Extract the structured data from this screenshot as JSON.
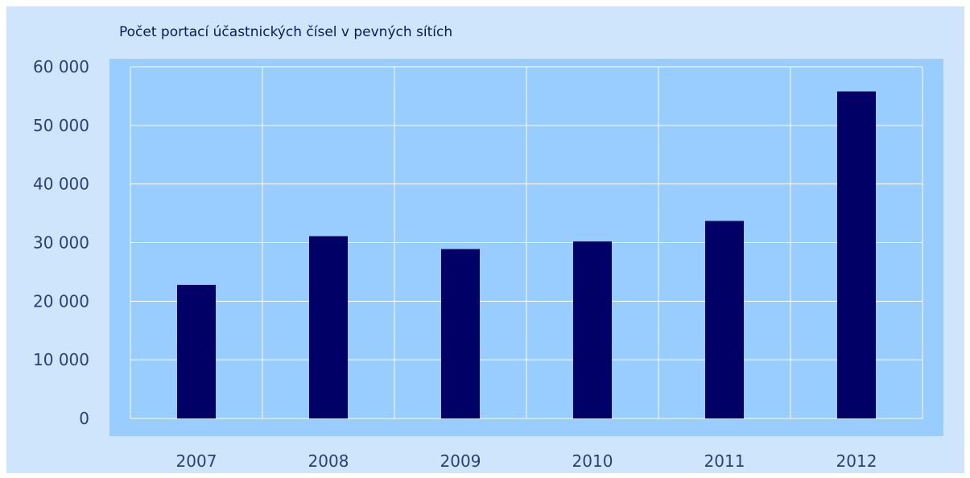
{
  "colors": {
    "frame_background": "#cfe5fb",
    "plot_background": "#99ccff",
    "gridline": "#ffffff",
    "bar": "#000066",
    "tick_text": "#2a3f7a",
    "title_text": "#0a1a5c"
  },
  "chart_data": {
    "type": "bar",
    "title": "Počet portací účastnických čísel v pevných sítích",
    "xlabel": "",
    "ylabel": "",
    "categories": [
      "2007",
      "2008",
      "2009",
      "2010",
      "2011",
      "2012"
    ],
    "series": [
      {
        "values": [
          22800,
          31100,
          28900,
          30200,
          33700,
          55800
        ]
      }
    ],
    "ylim": [
      0,
      60000
    ],
    "yticks": [
      0,
      10000,
      20000,
      30000,
      40000,
      50000,
      60000
    ],
    "ytick_labels": [
      "0",
      "10 000",
      "20 000",
      "30 000",
      "40 000",
      "50 000",
      "60 000"
    ],
    "grid": true,
    "legend": "none"
  }
}
